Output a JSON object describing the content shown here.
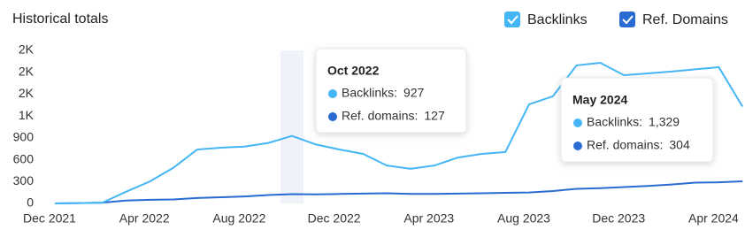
{
  "chart_data": {
    "type": "line",
    "title": "Historical totals",
    "categories": [
      "Dec 2021",
      null,
      null,
      null,
      "Apr 2022",
      null,
      null,
      null,
      "Aug 2022",
      null,
      null,
      null,
      "Dec 2022",
      null,
      null,
      null,
      "Apr 2023",
      null,
      null,
      null,
      "Aug 2023",
      null,
      null,
      null,
      "Dec 2023",
      null,
      null,
      null,
      "Apr 2024",
      null
    ],
    "series": [
      {
        "name": "Backlinks",
        "color": "#45b6f5",
        "values": [
          0,
          5,
          10,
          160,
          300,
          490,
          740,
          765,
          780,
          830,
          927,
          810,
          740,
          680,
          520,
          475,
          520,
          630,
          680,
          705,
          1360,
          1470,
          1895,
          1930,
          1760,
          1785,
          1810,
          1840,
          1870,
          1329
        ]
      },
      {
        "name": "Ref. Domains",
        "color": "#2a6ad3",
        "values": [
          0,
          5,
          10,
          40,
          50,
          55,
          75,
          85,
          95,
          115,
          127,
          125,
          130,
          135,
          140,
          130,
          130,
          135,
          140,
          145,
          150,
          170,
          200,
          210,
          225,
          240,
          260,
          285,
          290,
          304
        ]
      }
    ],
    "ylim": [
      0,
      2100
    ],
    "yticks": [
      0,
      300,
      600,
      900,
      {
        "value": 1200,
        "label": "1K"
      },
      {
        "value": 1500,
        "label": "2K"
      },
      {
        "value": 1800,
        "label": "2K"
      },
      {
        "value": 2100,
        "label": "2K"
      }
    ],
    "grid": false,
    "highlight_index": 10,
    "tooltips": [
      {
        "title": "Oct 2022",
        "items": [
          {
            "label": "Backlinks:",
            "value": 927
          },
          {
            "label": "Ref. domains:",
            "value": 127
          }
        ]
      },
      {
        "title": "May 2024",
        "items": [
          {
            "label": "Backlinks:",
            "value": 1329,
            "value_label": "1,329"
          },
          {
            "label": "Ref. domains:",
            "value": 304
          }
        ]
      }
    ]
  }
}
